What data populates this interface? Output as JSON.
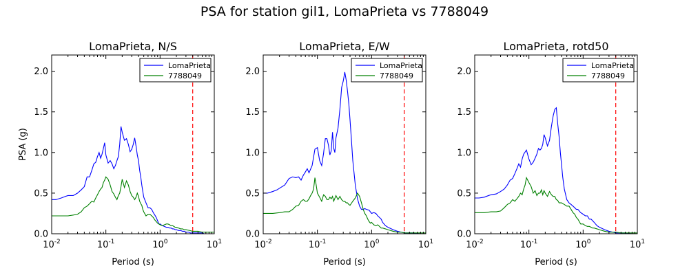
{
  "figure": {
    "title": "PSA for station gil1, LomaPrieta vs 7788049"
  },
  "colors": {
    "series_1": "#0000ff",
    "series_2": "#008000",
    "vline": "#ff0000"
  },
  "chart_data": [
    {
      "type": "line",
      "title": "LomaPrieta, N/S",
      "xlabel": "Period (s)",
      "ylabel": "PSA (g)",
      "xscale": "log",
      "xlim": [
        0.01,
        10
      ],
      "ylim": [
        0,
        2.2
      ],
      "yticks": [
        "0.0",
        "0.5",
        "1.0",
        "1.5",
        "2.0"
      ],
      "xticks": [
        {
          "base": "10",
          "exp": "-2"
        },
        {
          "base": "10",
          "exp": "-1"
        },
        {
          "base": "10",
          "exp": "0"
        },
        {
          "base": "10",
          "exp": "1"
        }
      ],
      "legend_position": "top-right",
      "vline_x": 4,
      "series": [
        {
          "name": "LomaPrieta",
          "x": [
            0.01,
            0.012,
            0.015,
            0.018,
            0.02,
            0.025,
            0.03,
            0.035,
            0.04,
            0.045,
            0.05,
            0.055,
            0.06,
            0.065,
            0.07,
            0.075,
            0.08,
            0.085,
            0.09,
            0.095,
            0.1,
            0.11,
            0.12,
            0.13,
            0.14,
            0.15,
            0.16,
            0.17,
            0.18,
            0.19,
            0.2,
            0.22,
            0.24,
            0.26,
            0.28,
            0.3,
            0.32,
            0.34,
            0.36,
            0.38,
            0.4,
            0.42,
            0.44,
            0.46,
            0.48,
            0.5,
            0.55,
            0.6,
            0.65,
            0.7,
            0.75,
            0.8,
            0.85,
            0.9,
            0.95,
            1.0,
            1.1,
            1.2,
            1.3,
            1.4,
            1.5,
            1.6,
            1.7,
            1.8,
            1.9,
            2.0,
            2.2,
            2.4,
            2.6,
            2.8,
            3.0,
            3.2,
            3.4,
            3.6,
            3.8,
            4.0,
            4.4,
            5.0,
            5.5,
            6.0,
            6.5,
            7.5,
            8.5,
            10.0
          ],
          "y": [
            0.42,
            0.42,
            0.44,
            0.46,
            0.47,
            0.47,
            0.5,
            0.54,
            0.58,
            0.7,
            0.7,
            0.78,
            0.86,
            0.88,
            0.95,
            1.0,
            0.93,
            0.98,
            1.05,
            1.12,
            0.97,
            0.87,
            0.9,
            0.86,
            0.8,
            0.84,
            0.9,
            0.95,
            1.1,
            1.32,
            1.25,
            1.15,
            1.17,
            1.1,
            1.01,
            1.04,
            1.1,
            1.18,
            1.08,
            0.97,
            0.9,
            0.78,
            0.7,
            0.6,
            0.52,
            0.45,
            0.38,
            0.32,
            0.32,
            0.3,
            0.26,
            0.23,
            0.2,
            0.16,
            0.12,
            0.12,
            0.1,
            0.09,
            0.08,
            0.08,
            0.07,
            0.07,
            0.06,
            0.06,
            0.05,
            0.05,
            0.04,
            0.04,
            0.03,
            0.03,
            0.02,
            0.02,
            0.02,
            0.01,
            0.01,
            0.01,
            0.01,
            0.01,
            0.01,
            0.01,
            0.0,
            0.0,
            0.0,
            0.0
          ]
        },
        {
          "name": "7788049",
          "x": [
            0.01,
            0.015,
            0.02,
            0.025,
            0.03,
            0.035,
            0.04,
            0.045,
            0.05,
            0.055,
            0.06,
            0.065,
            0.07,
            0.075,
            0.08,
            0.085,
            0.09,
            0.095,
            0.1,
            0.11,
            0.12,
            0.13,
            0.14,
            0.15,
            0.16,
            0.17,
            0.18,
            0.19,
            0.2,
            0.22,
            0.24,
            0.26,
            0.28,
            0.3,
            0.32,
            0.34,
            0.36,
            0.38,
            0.4,
            0.42,
            0.44,
            0.46,
            0.48,
            0.5,
            0.55,
            0.6,
            0.65,
            0.7,
            0.75,
            0.8,
            0.85,
            0.9,
            0.95,
            1.0,
            1.1,
            1.2,
            1.3,
            1.4,
            1.5,
            1.6,
            1.7,
            1.8,
            1.9,
            2.0,
            2.2,
            2.4,
            2.6,
            2.8,
            3.0,
            3.5,
            4.0,
            4.5,
            5.0,
            6.0,
            7.0,
            8.0,
            10.0
          ],
          "y": [
            0.22,
            0.22,
            0.22,
            0.23,
            0.24,
            0.27,
            0.32,
            0.34,
            0.37,
            0.4,
            0.39,
            0.44,
            0.48,
            0.52,
            0.55,
            0.57,
            0.63,
            0.66,
            0.7,
            0.67,
            0.6,
            0.52,
            0.49,
            0.45,
            0.42,
            0.47,
            0.5,
            0.58,
            0.67,
            0.57,
            0.65,
            0.6,
            0.52,
            0.47,
            0.45,
            0.42,
            0.45,
            0.5,
            0.46,
            0.4,
            0.37,
            0.35,
            0.3,
            0.27,
            0.22,
            0.24,
            0.24,
            0.22,
            0.2,
            0.17,
            0.15,
            0.13,
            0.12,
            0.11,
            0.1,
            0.11,
            0.12,
            0.12,
            0.11,
            0.1,
            0.1,
            0.09,
            0.08,
            0.08,
            0.07,
            0.06,
            0.06,
            0.05,
            0.05,
            0.04,
            0.03,
            0.03,
            0.03,
            0.02,
            0.02,
            0.02,
            0.02
          ]
        }
      ]
    },
    {
      "type": "line",
      "title": "LomaPrieta, E/W",
      "xlabel": "Period (s)",
      "ylabel": "",
      "xscale": "log",
      "xlim": [
        0.01,
        10
      ],
      "ylim": [
        0,
        2.2
      ],
      "yticks": [
        "0.0",
        "0.5",
        "1.0",
        "1.5",
        "2.0"
      ],
      "xticks": [
        {
          "base": "10",
          "exp": "-2"
        },
        {
          "base": "10",
          "exp": "-1"
        },
        {
          "base": "10",
          "exp": "0"
        },
        {
          "base": "10",
          "exp": "1"
        }
      ],
      "legend_position": "top-right",
      "vline_x": 4,
      "series": [
        {
          "name": "LomaPrieta",
          "x": [
            0.01,
            0.012,
            0.015,
            0.018,
            0.02,
            0.025,
            0.028,
            0.03,
            0.035,
            0.04,
            0.045,
            0.05,
            0.055,
            0.06,
            0.065,
            0.07,
            0.08,
            0.09,
            0.1,
            0.11,
            0.12,
            0.13,
            0.14,
            0.15,
            0.16,
            0.17,
            0.18,
            0.19,
            0.2,
            0.21,
            0.22,
            0.24,
            0.26,
            0.28,
            0.3,
            0.32,
            0.34,
            0.36,
            0.38,
            0.4,
            0.42,
            0.45,
            0.5,
            0.55,
            0.6,
            0.65,
            0.7,
            0.75,
            0.8,
            0.9,
            1.0,
            1.1,
            1.2,
            1.3,
            1.4,
            1.5,
            1.6,
            1.8,
            2.0,
            2.5,
            3.0,
            3.5,
            4.0,
            5.0,
            6.0,
            8.0,
            10.0
          ],
          "y": [
            0.5,
            0.5,
            0.52,
            0.54,
            0.56,
            0.6,
            0.65,
            0.68,
            0.7,
            0.69,
            0.7,
            0.66,
            0.72,
            0.76,
            0.8,
            0.75,
            0.84,
            1.04,
            1.06,
            0.9,
            0.84,
            0.99,
            1.17,
            1.17,
            1.09,
            0.97,
            1.02,
            1.25,
            1.05,
            1.0,
            1.18,
            1.3,
            1.53,
            1.8,
            1.88,
            1.99,
            1.89,
            1.75,
            1.6,
            1.4,
            1.2,
            0.9,
            0.6,
            0.43,
            0.34,
            0.3,
            0.3,
            0.31,
            0.3,
            0.29,
            0.25,
            0.26,
            0.25,
            0.22,
            0.2,
            0.18,
            0.14,
            0.1,
            0.08,
            0.05,
            0.03,
            0.02,
            0.01,
            0.01,
            0.01,
            0.0,
            0.0
          ]
        },
        {
          "name": "7788049",
          "x": [
            0.01,
            0.015,
            0.02,
            0.025,
            0.03,
            0.035,
            0.04,
            0.045,
            0.05,
            0.055,
            0.06,
            0.065,
            0.07,
            0.075,
            0.08,
            0.085,
            0.09,
            0.095,
            0.1,
            0.11,
            0.12,
            0.13,
            0.14,
            0.15,
            0.16,
            0.17,
            0.18,
            0.19,
            0.2,
            0.22,
            0.24,
            0.26,
            0.28,
            0.3,
            0.32,
            0.34,
            0.36,
            0.38,
            0.4,
            0.45,
            0.5,
            0.55,
            0.6,
            0.65,
            0.7,
            0.75,
            0.8,
            0.85,
            0.9,
            0.95,
            1.0,
            1.1,
            1.2,
            1.3,
            1.4,
            1.5,
            1.6,
            1.8,
            2.0,
            2.5,
            3.0,
            3.5,
            4.0,
            5.0,
            6.0,
            8.0,
            10.0
          ],
          "y": [
            0.25,
            0.25,
            0.26,
            0.27,
            0.27,
            0.3,
            0.34,
            0.35,
            0.4,
            0.42,
            0.4,
            0.4,
            0.43,
            0.47,
            0.5,
            0.55,
            0.69,
            0.6,
            0.5,
            0.45,
            0.4,
            0.48,
            0.46,
            0.42,
            0.42,
            0.45,
            0.43,
            0.46,
            0.4,
            0.47,
            0.42,
            0.46,
            0.42,
            0.4,
            0.4,
            0.38,
            0.38,
            0.36,
            0.35,
            0.4,
            0.44,
            0.5,
            0.46,
            0.38,
            0.3,
            0.25,
            0.22,
            0.18,
            0.15,
            0.13,
            0.14,
            0.11,
            0.1,
            0.11,
            0.09,
            0.07,
            0.07,
            0.06,
            0.05,
            0.03,
            0.02,
            0.02,
            0.01,
            0.01,
            0.01,
            0.01,
            0.01
          ]
        }
      ]
    },
    {
      "type": "line",
      "title": "LomaPrieta, rotd50",
      "xlabel": "Period (s)",
      "ylabel": "",
      "xscale": "log",
      "xlim": [
        0.01,
        10
      ],
      "ylim": [
        0,
        2.2
      ],
      "yticks": [
        "0.0",
        "0.5",
        "1.0",
        "1.5",
        "2.0"
      ],
      "xticks": [
        {
          "base": "10",
          "exp": "-2"
        },
        {
          "base": "10",
          "exp": "-1"
        },
        {
          "base": "10",
          "exp": "0"
        },
        {
          "base": "10",
          "exp": "1"
        }
      ],
      "legend_position": "top-right",
      "vline_x": 4,
      "series": [
        {
          "name": "LomaPrieta",
          "x": [
            0.01,
            0.012,
            0.015,
            0.018,
            0.02,
            0.025,
            0.03,
            0.035,
            0.04,
            0.045,
            0.05,
            0.055,
            0.06,
            0.065,
            0.07,
            0.075,
            0.08,
            0.09,
            0.1,
            0.11,
            0.12,
            0.13,
            0.14,
            0.15,
            0.16,
            0.17,
            0.18,
            0.19,
            0.2,
            0.22,
            0.24,
            0.26,
            0.28,
            0.3,
            0.32,
            0.34,
            0.36,
            0.38,
            0.4,
            0.42,
            0.45,
            0.5,
            0.55,
            0.6,
            0.65,
            0.7,
            0.75,
            0.8,
            0.9,
            1.0,
            1.1,
            1.2,
            1.3,
            1.4,
            1.5,
            1.6,
            1.8,
            2.0,
            2.5,
            3.0,
            3.5,
            4.0,
            5.0,
            6.0,
            8.0,
            10.0
          ],
          "y": [
            0.44,
            0.44,
            0.45,
            0.47,
            0.48,
            0.49,
            0.52,
            0.55,
            0.6,
            0.66,
            0.68,
            0.74,
            0.8,
            0.86,
            0.82,
            0.92,
            0.98,
            1.03,
            0.92,
            0.85,
            0.88,
            0.93,
            0.98,
            1.05,
            1.03,
            1.05,
            1.1,
            1.22,
            1.18,
            1.08,
            1.15,
            1.32,
            1.45,
            1.53,
            1.55,
            1.35,
            1.2,
            1.0,
            0.85,
            0.7,
            0.55,
            0.42,
            0.38,
            0.36,
            0.34,
            0.32,
            0.3,
            0.3,
            0.26,
            0.24,
            0.22,
            0.22,
            0.18,
            0.18,
            0.16,
            0.14,
            0.1,
            0.08,
            0.05,
            0.03,
            0.02,
            0.01,
            0.01,
            0.01,
            0.0,
            0.0
          ]
        },
        {
          "name": "7788049",
          "x": [
            0.01,
            0.015,
            0.02,
            0.025,
            0.03,
            0.035,
            0.04,
            0.045,
            0.05,
            0.055,
            0.06,
            0.065,
            0.07,
            0.075,
            0.08,
            0.085,
            0.09,
            0.1,
            0.11,
            0.12,
            0.13,
            0.14,
            0.15,
            0.16,
            0.17,
            0.18,
            0.19,
            0.2,
            0.22,
            0.24,
            0.26,
            0.28,
            0.3,
            0.32,
            0.34,
            0.36,
            0.38,
            0.4,
            0.45,
            0.5,
            0.55,
            0.6,
            0.65,
            0.7,
            0.75,
            0.8,
            0.85,
            0.9,
            1.0,
            1.1,
            1.2,
            1.3,
            1.4,
            1.5,
            1.6,
            1.8,
            2.0,
            2.5,
            3.0,
            3.5,
            4.0,
            5.0,
            6.0,
            8.0,
            10.0
          ],
          "y": [
            0.26,
            0.26,
            0.27,
            0.27,
            0.28,
            0.32,
            0.36,
            0.38,
            0.42,
            0.4,
            0.43,
            0.46,
            0.5,
            0.48,
            0.55,
            0.6,
            0.69,
            0.63,
            0.58,
            0.5,
            0.53,
            0.47,
            0.5,
            0.5,
            0.54,
            0.48,
            0.53,
            0.5,
            0.46,
            0.52,
            0.48,
            0.46,
            0.46,
            0.42,
            0.41,
            0.38,
            0.38,
            0.38,
            0.36,
            0.34,
            0.34,
            0.3,
            0.26,
            0.24,
            0.2,
            0.18,
            0.15,
            0.12,
            0.12,
            0.1,
            0.09,
            0.09,
            0.08,
            0.07,
            0.07,
            0.06,
            0.05,
            0.03,
            0.02,
            0.02,
            0.02,
            0.01,
            0.01,
            0.01,
            0.01
          ]
        }
      ]
    }
  ]
}
